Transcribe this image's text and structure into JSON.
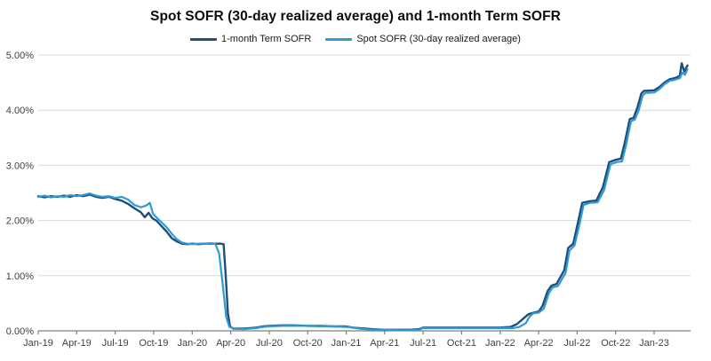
{
  "chart_data": {
    "type": "line",
    "title": "Spot SOFR (30-day realized average) and 1-month Term SOFR",
    "xlabel": "",
    "ylabel": "",
    "x_unit": "months since Jan-2019",
    "ylim": [
      0,
      5
    ],
    "grid": "horizontal",
    "legend_position": "top-center",
    "colors": {
      "axis": "#7F7F7F",
      "grid": "#D9D9D9",
      "tick_label": "#404040",
      "title": "#0D0D0D"
    },
    "y_ticks": [
      {
        "v": 0,
        "label": "0.00%"
      },
      {
        "v": 1,
        "label": "1.00%"
      },
      {
        "v": 2,
        "label": "2.00%"
      },
      {
        "v": 3,
        "label": "3.00%"
      },
      {
        "v": 4,
        "label": "4.00%"
      },
      {
        "v": 5,
        "label": "5.00%"
      }
    ],
    "x_ticks": [
      {
        "t": 0,
        "label": "Jan-19"
      },
      {
        "t": 3,
        "label": "Apr-19"
      },
      {
        "t": 6,
        "label": "Jul-19"
      },
      {
        "t": 9,
        "label": "Oct-19"
      },
      {
        "t": 12,
        "label": "Jan-20"
      },
      {
        "t": 15,
        "label": "Apr-20"
      },
      {
        "t": 18,
        "label": "Jul-20"
      },
      {
        "t": 21,
        "label": "Oct-20"
      },
      {
        "t": 24,
        "label": "Jan-21"
      },
      {
        "t": 27,
        "label": "Apr-21"
      },
      {
        "t": 30,
        "label": "Jul-21"
      },
      {
        "t": 33,
        "label": "Oct-21"
      },
      {
        "t": 36,
        "label": "Jan-22"
      },
      {
        "t": 39,
        "label": "Apr-22"
      },
      {
        "t": 42,
        "label": "Jul-22"
      },
      {
        "t": 45,
        "label": "Oct-22"
      },
      {
        "t": 48,
        "label": "Jan-23"
      }
    ],
    "series": [
      {
        "name": "1-month Term SOFR",
        "color": "#1F4E79",
        "width": 2.4,
        "points": [
          [
            0,
            2.44
          ],
          [
            0.5,
            2.42
          ],
          [
            1,
            2.44
          ],
          [
            1.5,
            2.43
          ],
          [
            2,
            2.45
          ],
          [
            2.5,
            2.43
          ],
          [
            3,
            2.46
          ],
          [
            3.5,
            2.44
          ],
          [
            4,
            2.47
          ],
          [
            4.5,
            2.43
          ],
          [
            5,
            2.41
          ],
          [
            5.5,
            2.43
          ],
          [
            6,
            2.39
          ],
          [
            6.5,
            2.36
          ],
          [
            7,
            2.3
          ],
          [
            7.5,
            2.22
          ],
          [
            8,
            2.15
          ],
          [
            8.3,
            2.06
          ],
          [
            8.6,
            2.14
          ],
          [
            8.9,
            2.04
          ],
          [
            9.2,
            2.0
          ],
          [
            9.6,
            1.9
          ],
          [
            10,
            1.8
          ],
          [
            10.4,
            1.68
          ],
          [
            10.8,
            1.62
          ],
          [
            11.2,
            1.58
          ],
          [
            11.6,
            1.57
          ],
          [
            12,
            1.58
          ],
          [
            12.5,
            1.57
          ],
          [
            13,
            1.58
          ],
          [
            13.4,
            1.58
          ],
          [
            13.8,
            1.58
          ],
          [
            14.2,
            1.58
          ],
          [
            14.45,
            1.57
          ],
          [
            14.6,
            1.05
          ],
          [
            14.78,
            0.32
          ],
          [
            14.95,
            0.08
          ],
          [
            15.2,
            0.04
          ],
          [
            15.6,
            0.04
          ],
          [
            16,
            0.04
          ],
          [
            16.5,
            0.05
          ],
          [
            17,
            0.06
          ],
          [
            17.5,
            0.08
          ],
          [
            18,
            0.09
          ],
          [
            19,
            0.1
          ],
          [
            20,
            0.1
          ],
          [
            21,
            0.09
          ],
          [
            22,
            0.09
          ],
          [
            23,
            0.08
          ],
          [
            24,
            0.08
          ],
          [
            24.5,
            0.06
          ],
          [
            25,
            0.05
          ],
          [
            25.5,
            0.04
          ],
          [
            26,
            0.03
          ],
          [
            27,
            0.02
          ],
          [
            28,
            0.02
          ],
          [
            29,
            0.02
          ],
          [
            29.7,
            0.03
          ],
          [
            30,
            0.06
          ],
          [
            31,
            0.06
          ],
          [
            32,
            0.06
          ],
          [
            33,
            0.06
          ],
          [
            34,
            0.06
          ],
          [
            35,
            0.06
          ],
          [
            36,
            0.06
          ],
          [
            36.8,
            0.07
          ],
          [
            37.3,
            0.12
          ],
          [
            37.8,
            0.22
          ],
          [
            38.2,
            0.3
          ],
          [
            38.6,
            0.33
          ],
          [
            39,
            0.35
          ],
          [
            39.3,
            0.45
          ],
          [
            39.7,
            0.72
          ],
          [
            40,
            0.82
          ],
          [
            40.4,
            0.85
          ],
          [
            41,
            1.1
          ],
          [
            41.3,
            1.5
          ],
          [
            41.7,
            1.58
          ],
          [
            42.1,
            2.0
          ],
          [
            42.4,
            2.32
          ],
          [
            43,
            2.35
          ],
          [
            43.5,
            2.36
          ],
          [
            44,
            2.6
          ],
          [
            44.5,
            3.06
          ],
          [
            45,
            3.1
          ],
          [
            45.4,
            3.12
          ],
          [
            45.7,
            3.4
          ],
          [
            46.1,
            3.84
          ],
          [
            46.4,
            3.86
          ],
          [
            46.7,
            4.05
          ],
          [
            47,
            4.3
          ],
          [
            47.2,
            4.35
          ],
          [
            48,
            4.36
          ],
          [
            48.4,
            4.42
          ],
          [
            48.8,
            4.5
          ],
          [
            49.2,
            4.56
          ],
          [
            49.6,
            4.58
          ],
          [
            50,
            4.62
          ],
          [
            50.15,
            4.85
          ],
          [
            50.35,
            4.7
          ],
          [
            50.6,
            4.81
          ]
        ]
      },
      {
        "name": "Spot SOFR (30-day realized average)",
        "color": "#2E9BD5",
        "width": 2.2,
        "points": [
          [
            0,
            2.43
          ],
          [
            0.5,
            2.45
          ],
          [
            1,
            2.42
          ],
          [
            1.5,
            2.44
          ],
          [
            2,
            2.43
          ],
          [
            2.5,
            2.46
          ],
          [
            3,
            2.44
          ],
          [
            3.5,
            2.46
          ],
          [
            4,
            2.49
          ],
          [
            4.5,
            2.45
          ],
          [
            5,
            2.43
          ],
          [
            5.5,
            2.44
          ],
          [
            6,
            2.41
          ],
          [
            6.5,
            2.43
          ],
          [
            7,
            2.38
          ],
          [
            7.5,
            2.28
          ],
          [
            8,
            2.24
          ],
          [
            8.4,
            2.27
          ],
          [
            8.7,
            2.32
          ],
          [
            8.95,
            2.12
          ],
          [
            9.2,
            2.06
          ],
          [
            9.6,
            1.97
          ],
          [
            10,
            1.88
          ],
          [
            10.4,
            1.76
          ],
          [
            10.8,
            1.66
          ],
          [
            11.2,
            1.6
          ],
          [
            11.6,
            1.58
          ],
          [
            12,
            1.57
          ],
          [
            12.5,
            1.58
          ],
          [
            13,
            1.58
          ],
          [
            13.4,
            1.59
          ],
          [
            13.8,
            1.58
          ],
          [
            14.1,
            1.4
          ],
          [
            14.4,
            0.8
          ],
          [
            14.65,
            0.25
          ],
          [
            14.9,
            0.07
          ],
          [
            15.3,
            0.04
          ],
          [
            16,
            0.03
          ],
          [
            16.5,
            0.04
          ],
          [
            17,
            0.05
          ],
          [
            17.5,
            0.07
          ],
          [
            18,
            0.08
          ],
          [
            19,
            0.09
          ],
          [
            20,
            0.09
          ],
          [
            21,
            0.09
          ],
          [
            22,
            0.08
          ],
          [
            23,
            0.08
          ],
          [
            24,
            0.07
          ],
          [
            24.5,
            0.06
          ],
          [
            25,
            0.04
          ],
          [
            25.5,
            0.03
          ],
          [
            26,
            0.02
          ],
          [
            27,
            0.02
          ],
          [
            28,
            0.01
          ],
          [
            29,
            0.01
          ],
          [
            29.7,
            0.02
          ],
          [
            30,
            0.05
          ],
          [
            31,
            0.05
          ],
          [
            32,
            0.05
          ],
          [
            33,
            0.05
          ],
          [
            34,
            0.05
          ],
          [
            35,
            0.05
          ],
          [
            36,
            0.05
          ],
          [
            37,
            0.05
          ],
          [
            37.5,
            0.07
          ],
          [
            38,
            0.14
          ],
          [
            38.3,
            0.26
          ],
          [
            38.6,
            0.32
          ],
          [
            39,
            0.33
          ],
          [
            39.4,
            0.4
          ],
          [
            39.8,
            0.68
          ],
          [
            40.1,
            0.79
          ],
          [
            40.5,
            0.81
          ],
          [
            41.1,
            1.05
          ],
          [
            41.4,
            1.45
          ],
          [
            41.8,
            1.55
          ],
          [
            42.2,
            1.95
          ],
          [
            42.5,
            2.28
          ],
          [
            43,
            2.32
          ],
          [
            43.6,
            2.33
          ],
          [
            44.1,
            2.55
          ],
          [
            44.6,
            3.02
          ],
          [
            45.1,
            3.06
          ],
          [
            45.5,
            3.07
          ],
          [
            45.8,
            3.35
          ],
          [
            46.2,
            3.8
          ],
          [
            46.5,
            3.83
          ],
          [
            46.8,
            4.0
          ],
          [
            47.1,
            4.26
          ],
          [
            47.3,
            4.31
          ],
          [
            48,
            4.32
          ],
          [
            48.4,
            4.38
          ],
          [
            48.8,
            4.47
          ],
          [
            49.2,
            4.53
          ],
          [
            49.6,
            4.55
          ],
          [
            50,
            4.58
          ],
          [
            50.2,
            4.68
          ],
          [
            50.4,
            4.64
          ],
          [
            50.6,
            4.74
          ]
        ]
      }
    ]
  }
}
